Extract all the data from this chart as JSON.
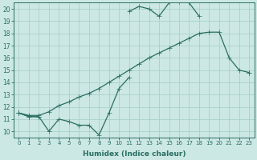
{
  "xlabel": "Humidex (Indice chaleur)",
  "x": [
    0,
    1,
    2,
    3,
    4,
    5,
    6,
    7,
    8,
    9,
    10,
    11,
    12,
    13,
    14,
    15,
    16,
    17,
    18,
    19,
    20,
    21,
    22,
    23
  ],
  "line_upper": [
    11.5,
    11.2,
    11.2,
    null,
    null,
    null,
    null,
    null,
    null,
    null,
    null,
    19.8,
    20.2,
    20.0,
    19.4,
    20.5,
    20.6,
    20.5,
    19.4,
    null,
    null,
    null,
    null,
    null
  ],
  "line_mid": [
    11.5,
    11.3,
    11.3,
    11.6,
    12.1,
    12.4,
    12.8,
    13.1,
    13.5,
    14.0,
    14.5,
    15.0,
    15.5,
    16.0,
    16.4,
    16.8,
    17.2,
    17.6,
    18.0,
    18.1,
    18.1,
    16.0,
    15.0,
    14.8
  ],
  "line_lower": [
    11.5,
    11.2,
    11.2,
    10.0,
    11.0,
    10.8,
    10.5,
    10.5,
    9.7,
    11.5,
    13.5,
    14.4,
    null,
    null,
    null,
    null,
    null,
    null,
    null,
    null,
    null,
    null,
    null,
    14.8
  ],
  "line_color": "#2a6e62",
  "bg_color": "#cce8e4",
  "grid_color": "#aacfcb",
  "xlim": [
    -0.5,
    23.5
  ],
  "ylim": [
    9.5,
    20.5
  ],
  "yticks": [
    10,
    11,
    12,
    13,
    14,
    15,
    16,
    17,
    18,
    19,
    20
  ],
  "xticks": [
    0,
    1,
    2,
    3,
    4,
    5,
    6,
    7,
    8,
    9,
    10,
    11,
    12,
    13,
    14,
    15,
    16,
    17,
    18,
    19,
    20,
    21,
    22,
    23
  ],
  "tick_fontsize": 5.0,
  "xlabel_fontsize": 6.5
}
